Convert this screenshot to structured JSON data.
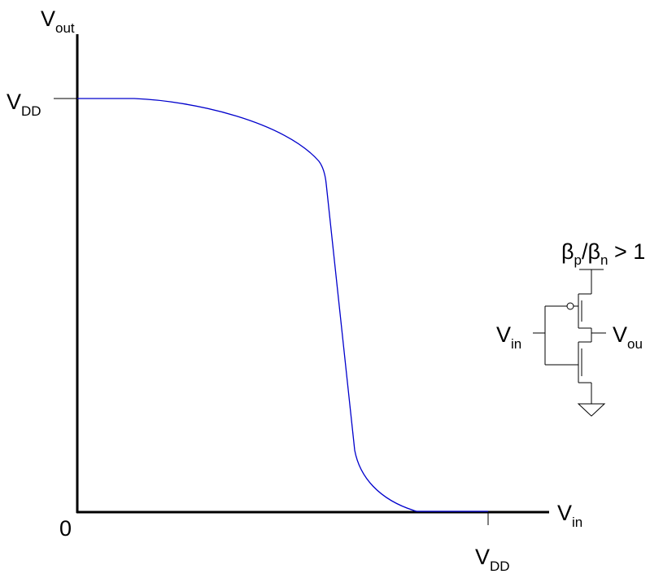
{
  "y_axis": {
    "main": "V",
    "sub": "out"
  },
  "x_axis": {
    "main": "V",
    "sub": "in"
  },
  "y_tick": {
    "main": "V",
    "sub": "DD"
  },
  "x_tick": {
    "main": "V",
    "sub": "DD"
  },
  "origin_label": "0",
  "curve_color": "#0000cc",
  "inverter": {
    "ratio": {
      "b1": "β",
      "s1": "p",
      "slash": "/",
      "b2": "β",
      "s2": "n",
      "rest": " > 1"
    },
    "input": {
      "main": "V",
      "sub": "in"
    },
    "output": {
      "main": "V",
      "sub": "ou"
    }
  }
}
